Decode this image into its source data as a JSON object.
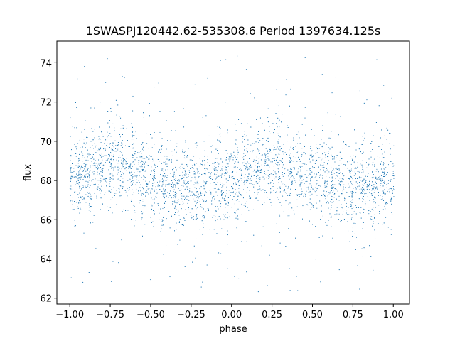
{
  "chart_data": {
    "type": "scatter",
    "title": "1SWASPJ120442.62-535308.6 Period 1397634.125s",
    "xlabel": "phase",
    "ylabel": "flux",
    "xlim": [
      -1.08,
      1.1
    ],
    "ylim": [
      61.7,
      75.1
    ],
    "xticks": [
      -1.0,
      -0.75,
      -0.5,
      -0.25,
      0.0,
      0.25,
      0.5,
      0.75,
      1.0
    ],
    "xtick_labels": [
      "−1.00",
      "−0.75",
      "−0.50",
      "−0.25",
      "0.00",
      "0.25",
      "0.50",
      "0.75",
      "1.00"
    ],
    "yticks": [
      62,
      64,
      66,
      68,
      70,
      72,
      74
    ],
    "ytick_labels": [
      "62",
      "64",
      "66",
      "68",
      "70",
      "72",
      "74"
    ],
    "grid": false,
    "point_color": "#1f77b4",
    "phase_range": [
      -1.0,
      1.0
    ],
    "flux_profile": {
      "phase": [
        0.0,
        0.1,
        0.2,
        0.3,
        0.4,
        0.5,
        0.6,
        0.7,
        0.8,
        0.9,
        1.0
      ],
      "median_flux": [
        68.0,
        68.4,
        68.9,
        68.9,
        68.5,
        68.0,
        67.9,
        67.7,
        67.6,
        68.0,
        68.0
      ],
      "spread": 1.2
    },
    "outlier_range": [
      62.2,
      74.5
    ]
  }
}
